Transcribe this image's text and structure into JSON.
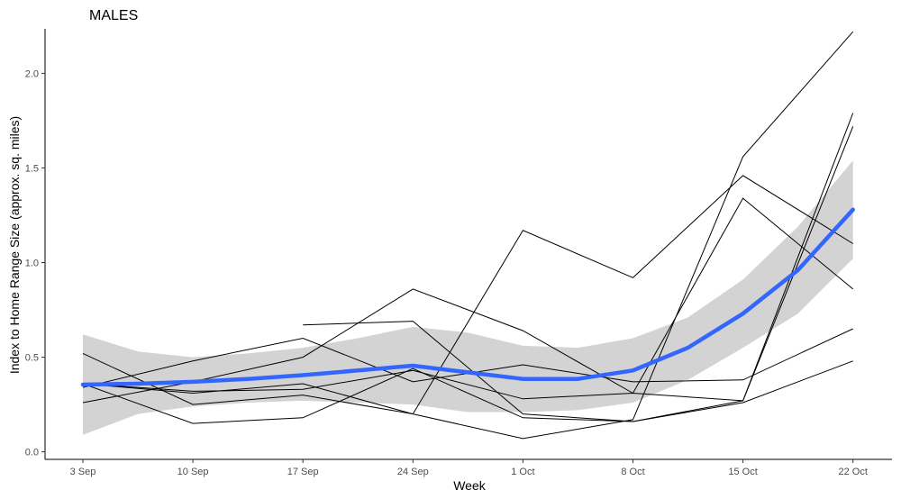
{
  "chart_data": {
    "type": "line",
    "title": "MALES",
    "xlabel": "Week",
    "ylabel": "Index to Home Range Size (approx. sq. miles)",
    "categories": [
      "3 Sep",
      "10 Sep",
      "17 Sep",
      "24 Sep",
      "1 Oct",
      "8 Oct",
      "15 Oct",
      "22 Oct"
    ],
    "y_ticks": [
      "0.0",
      "0.5",
      "1.0",
      "1.5",
      "2.0"
    ],
    "ylim": [
      -0.04,
      2.34
    ],
    "grid": false,
    "legend": "none",
    "series": [
      {
        "values": [
          0.36,
          0.31,
          0.36,
          0.2,
          0.07,
          0.17,
          1.56,
          2.22
        ]
      },
      {
        "values": [
          0.26,
          0.37,
          0.5,
          0.86,
          0.64,
          0.31,
          1.34,
          0.86
        ]
      },
      {
        "values": [
          0.52,
          0.25,
          0.3,
          0.2,
          1.17,
          0.92,
          1.46,
          1.1
        ]
      },
      {
        "values": [
          0.36,
          0.15,
          0.18,
          0.44,
          0.18,
          0.16,
          0.26,
          0.48
        ]
      },
      {
        "values": [
          0.34,
          0.48,
          0.6,
          0.37,
          0.46,
          0.37,
          0.38,
          0.65
        ]
      },
      {
        "values": [
          null,
          null,
          0.67,
          0.69,
          0.2,
          0.16,
          0.27,
          1.72
        ]
      },
      {
        "values": [
          0.36,
          0.32,
          0.33,
          0.43,
          0.28,
          0.31,
          0.27,
          1.79
        ]
      }
    ],
    "smooth": {
      "method": "loess",
      "x": [
        0,
        0.5,
        1,
        1.5,
        2,
        2.5,
        3,
        3.5,
        4,
        4.5,
        5,
        5.5,
        6,
        6.5,
        7
      ],
      "y": [
        0.355,
        0.36,
        0.37,
        0.385,
        0.405,
        0.43,
        0.455,
        0.42,
        0.385,
        0.385,
        0.43,
        0.55,
        0.73,
        0.96,
        1.28
      ],
      "lower": [
        0.09,
        0.2,
        0.24,
        0.26,
        0.27,
        0.26,
        0.25,
        0.21,
        0.21,
        0.22,
        0.26,
        0.38,
        0.55,
        0.73,
        1.02
      ],
      "upper": [
        0.62,
        0.53,
        0.5,
        0.52,
        0.55,
        0.6,
        0.66,
        0.63,
        0.56,
        0.55,
        0.6,
        0.71,
        0.91,
        1.19,
        1.54
      ]
    },
    "colors": {
      "lines": "#000000",
      "smooth": "#3366ff",
      "ribbon": "#d3d3d3",
      "axis": "#000000"
    }
  }
}
